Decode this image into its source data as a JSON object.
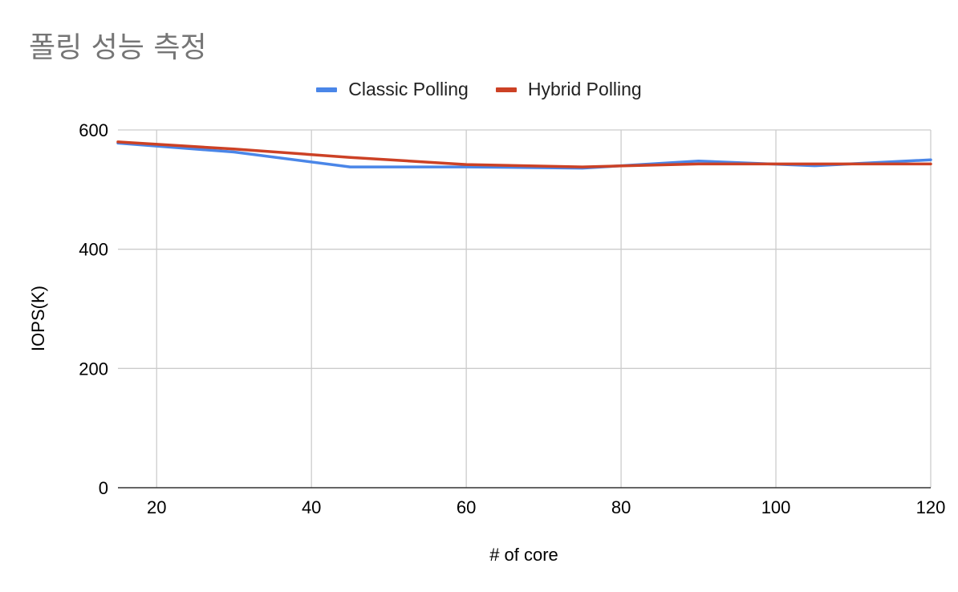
{
  "chart_data": {
    "type": "line",
    "title": "폴링 성능 측정",
    "xlabel": "# of core",
    "ylabel": "IOPS(K)",
    "xlim": [
      15,
      120
    ],
    "ylim": [
      0,
      600
    ],
    "xticks": [
      20,
      40,
      60,
      80,
      100,
      120
    ],
    "yticks": [
      0,
      200,
      400,
      600
    ],
    "grid": true,
    "legend_position": "top-center",
    "series": [
      {
        "name": "Classic Polling",
        "color": "#4a86e8",
        "x": [
          15,
          30,
          45,
          60,
          75,
          90,
          105,
          120
        ],
        "y": [
          578,
          563,
          538,
          538,
          536,
          548,
          540,
          550
        ]
      },
      {
        "name": "Hybrid Polling",
        "color": "#cc4125",
        "x": [
          15,
          30,
          45,
          60,
          75,
          90,
          105,
          120
        ],
        "y": [
          580,
          568,
          554,
          542,
          538,
          543,
          543,
          543
        ]
      }
    ]
  }
}
